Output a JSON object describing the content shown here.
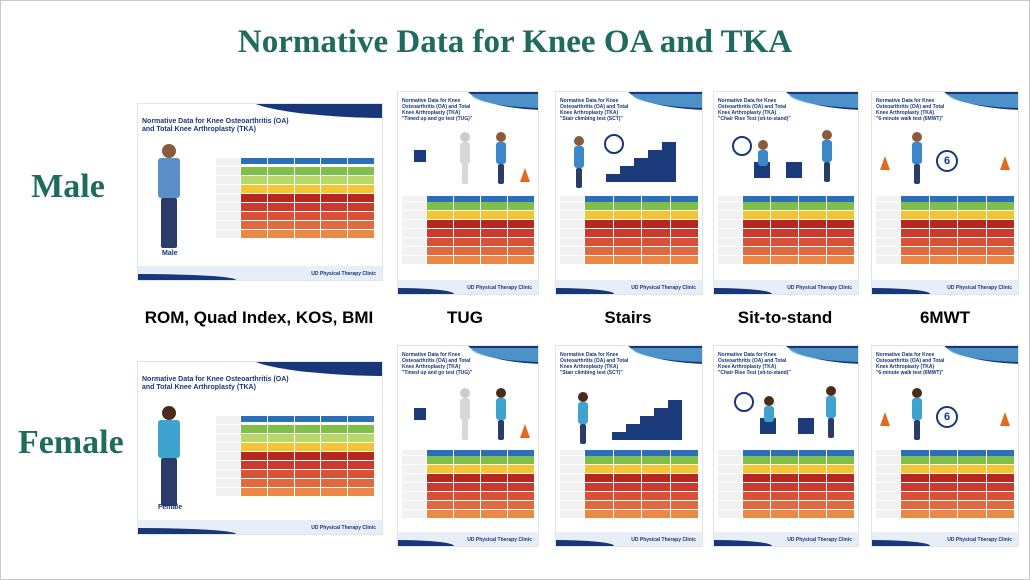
{
  "title": "Normative Data for Knee OA and TKA",
  "row_labels": [
    "Male",
    "Female"
  ],
  "captions": [
    "ROM, Quad Index, KOS, BMI",
    "TUG",
    "Stairs",
    "Sit-to-stand",
    "6MWT"
  ],
  "thumbnails": {
    "main_title": "Normative Data for Knee Osteoarthritis (OA) and Total Knee Arthroplasty (TKA)",
    "tug_title": "Normative Data for Knee Osteoarthritis (OA) and Total Knee Arthroplasty (TKA)",
    "tug_sub": "\"Timed up and go test (TUG)\"",
    "stairs_title": "Normative Data for Knee Osteoarthritis (OA) and Total Knee Arthroplasty (TKA)",
    "stairs_sub": "\"Stair climbing test (SCT)\"",
    "sts_title": "Normative Data for Knee Osteoarthritis (OA) and Total Knee Arthroplasty (TKA)",
    "sts_sub": "\"Chair Rise Test (sit-to-stand)\"",
    "walk_title": "Normative Data for Knee Osteoarthritis (OA) and Total Knee Arthroplasty (TKA)",
    "walk_sub": "\"6-minute walk test (6MWT)\"",
    "male_label": "Male",
    "female_label": "Female",
    "logo": "UD Physical Therapy Clinic",
    "walk_badge": "6",
    "row_colors": [
      "#7fbf4a",
      "#f2c531",
      "#c7392b",
      "#d3433a",
      "#dc5a3c",
      "#e07a42",
      "#e9a24f"
    ]
  }
}
